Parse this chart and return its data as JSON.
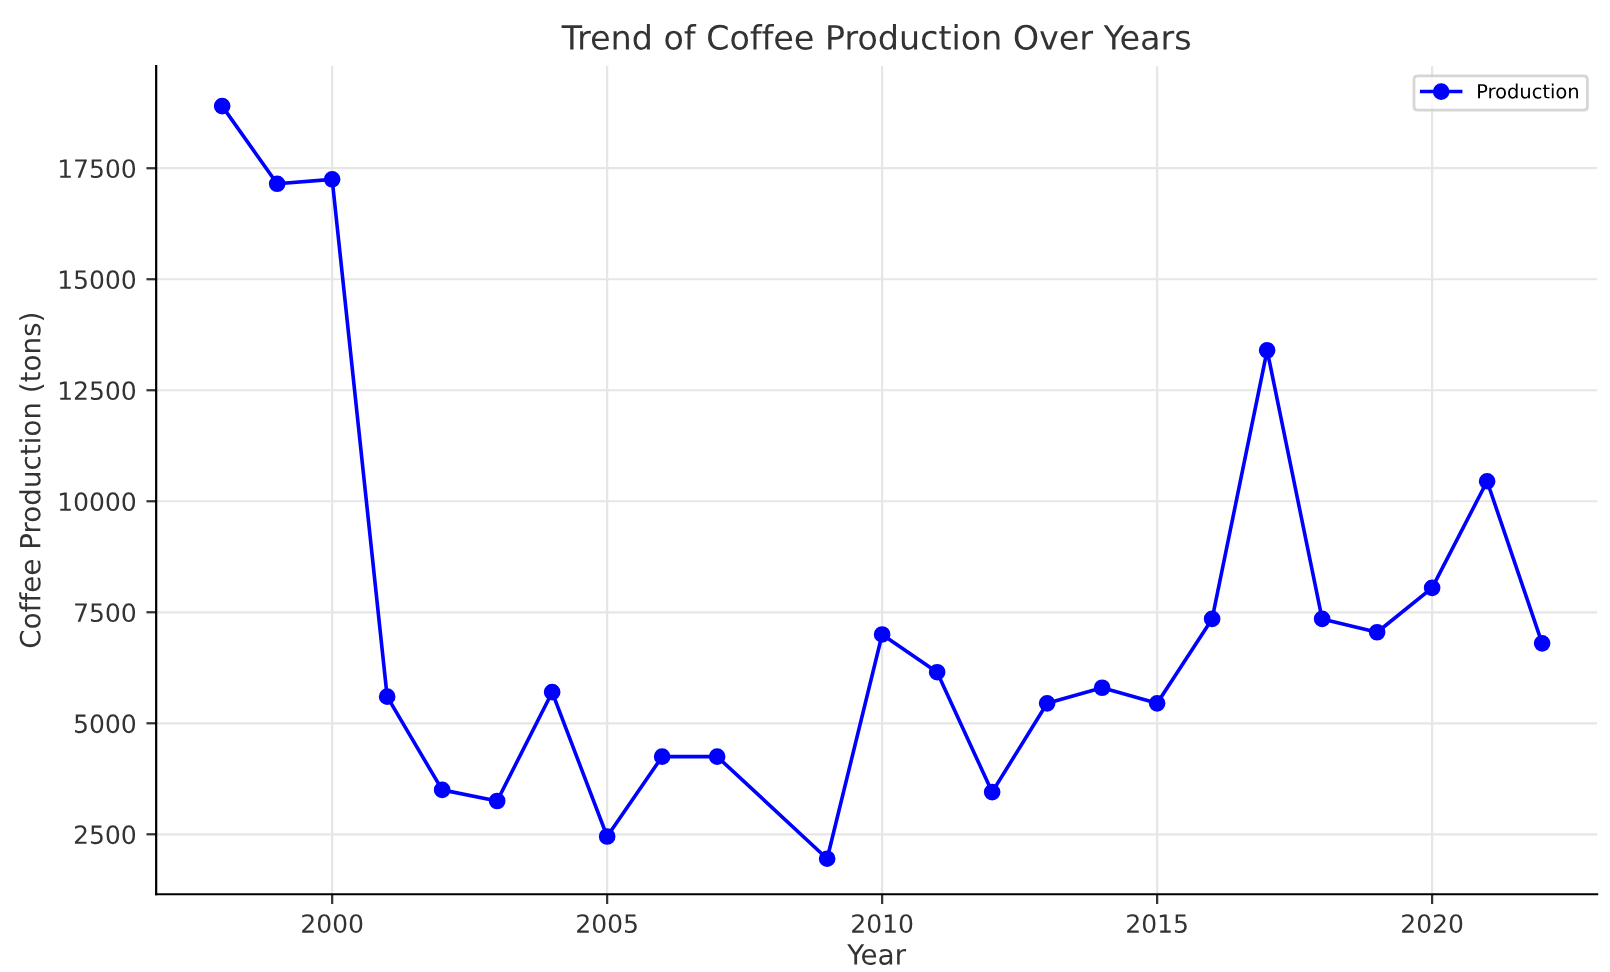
{
  "chart_data": {
    "type": "line",
    "title": "Trend of Coffee Production Over Years",
    "xlabel": "Year",
    "ylabel": "Coffee Production (tons)",
    "x": [
      1998,
      1999,
      2000,
      2001,
      2002,
      2003,
      2004,
      2005,
      2006,
      2007,
      2009,
      2010,
      2011,
      2012,
      2013,
      2014,
      2015,
      2016,
      2017,
      2018,
      2019,
      2020,
      2021,
      2022
    ],
    "series": [
      {
        "name": "Production",
        "color": "#0000ff",
        "values": [
          18900,
          17150,
          17250,
          5600,
          3500,
          3250,
          5700,
          2450,
          4250,
          4250,
          1950,
          7000,
          6150,
          3450,
          5450,
          5800,
          5450,
          7350,
          13400,
          7350,
          7050,
          8050,
          10450,
          6800
        ]
      }
    ],
    "xlim": [
      1996.8,
      2023.0
    ],
    "xticks": [
      2000,
      2005,
      2010,
      2015,
      2020
    ],
    "ylim": [
      1150,
      19800
    ],
    "yticks": [
      2500,
      5000,
      7500,
      10000,
      12500,
      15000,
      17500
    ],
    "grid": true,
    "legend": "top right",
    "marker": "circle",
    "line_style": "solid"
  }
}
